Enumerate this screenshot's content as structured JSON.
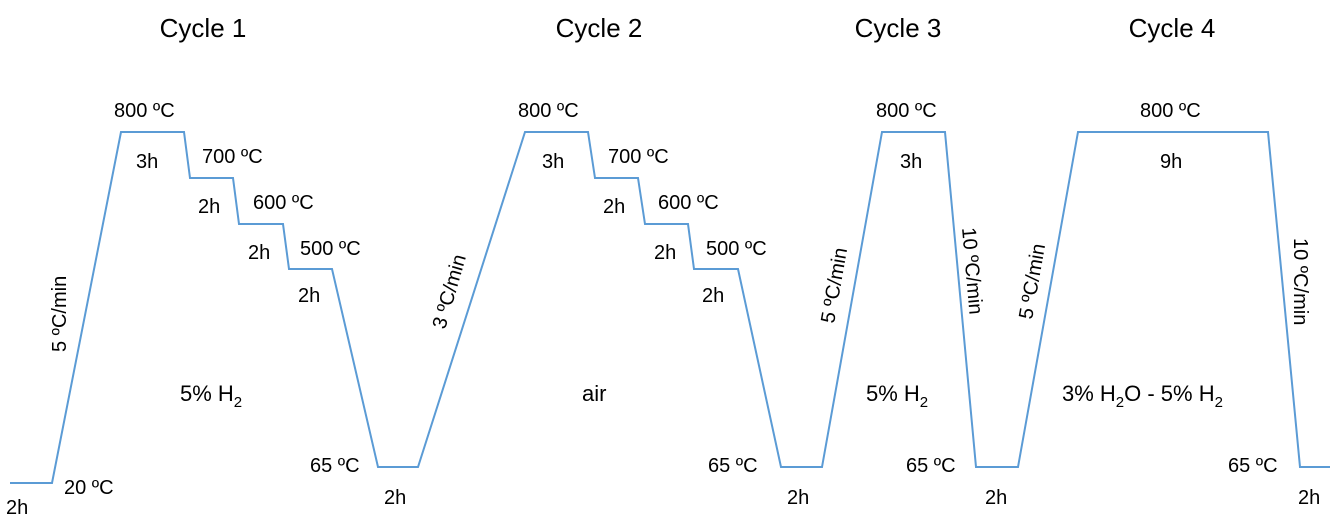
{
  "cycles": [
    {
      "title": "Cycle 1"
    },
    {
      "title": "Cycle 2"
    },
    {
      "title": "Cycle 3"
    },
    {
      "title": "Cycle 4"
    }
  ],
  "temperatures": {
    "t800": "800 ºC",
    "t700": "700 ºC",
    "t600": "600 ºC",
    "t500": "500 ºC",
    "t65": "65 ºC",
    "t20": "20 ºC"
  },
  "durations": {
    "h2": "2h",
    "h3": "3h",
    "h9": "9h",
    "h2_cut": "2h"
  },
  "rates": {
    "r5": "5 ºC/min",
    "r3": "3 ºC/min",
    "r10": "10 ºC/min"
  },
  "atmospheres": {
    "h2": {
      "main": "5% H",
      "sub": "2"
    },
    "air": "air",
    "h2o_h2": {
      "main1": "3% H",
      "sub1": "2",
      "main2": "O - 5% H",
      "sub2": "2"
    }
  },
  "colors": {
    "profile": "#5b9bd5"
  }
}
